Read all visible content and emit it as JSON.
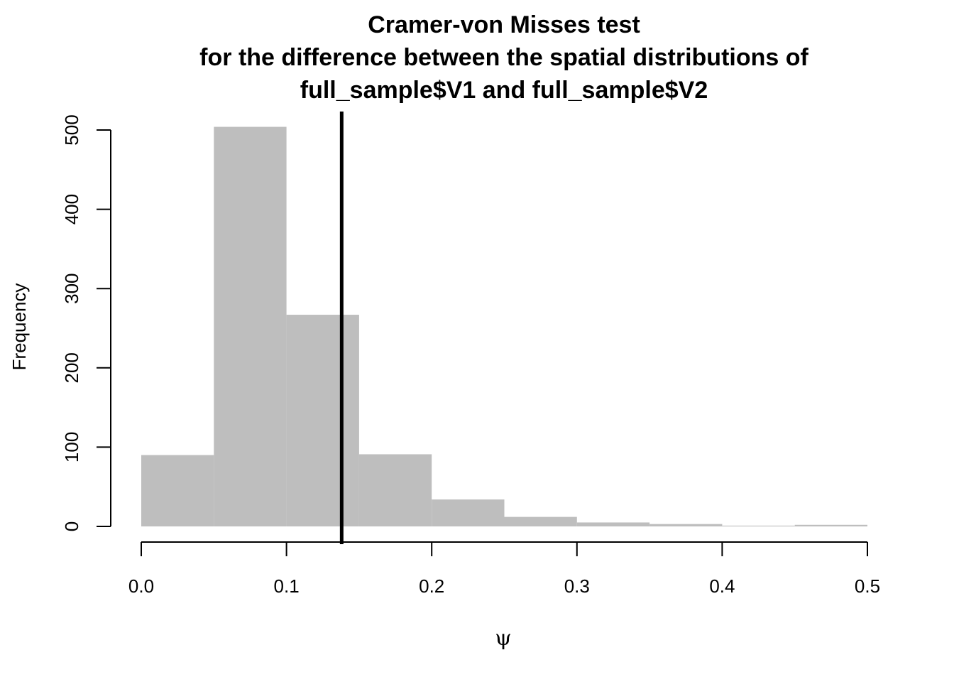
{
  "chart_data": {
    "type": "bar",
    "title_lines": [
      "Cramer-von Misses test",
      "for the difference between the spatial distributions of",
      "full_sample$V1 and full_sample$V2"
    ],
    "xlabel": "ψ",
    "ylabel": "Frequency",
    "bins": [
      {
        "x0": 0.0,
        "x1": 0.05,
        "count": 90
      },
      {
        "x0": 0.05,
        "x1": 0.1,
        "count": 504
      },
      {
        "x0": 0.1,
        "x1": 0.15,
        "count": 267
      },
      {
        "x0": 0.15,
        "x1": 0.2,
        "count": 91
      },
      {
        "x0": 0.2,
        "x1": 0.25,
        "count": 34
      },
      {
        "x0": 0.25,
        "x1": 0.3,
        "count": 12
      },
      {
        "x0": 0.3,
        "x1": 0.35,
        "count": 5
      },
      {
        "x0": 0.35,
        "x1": 0.4,
        "count": 3
      },
      {
        "x0": 0.4,
        "x1": 0.45,
        "count": 1
      },
      {
        "x0": 0.45,
        "x1": 0.5,
        "count": 2
      }
    ],
    "observed_value": 0.138,
    "xlim": [
      0,
      0.5
    ],
    "ylim": [
      0,
      500
    ],
    "x_ticks": [
      "0.0",
      "0.1",
      "0.2",
      "0.3",
      "0.4",
      "0.5"
    ],
    "x_tick_values": [
      0,
      0.1,
      0.2,
      0.3,
      0.4,
      0.5
    ],
    "y_ticks": [
      "0",
      "100",
      "200",
      "300",
      "400",
      "500"
    ],
    "y_tick_values": [
      0,
      100,
      200,
      300,
      400,
      500
    ],
    "bar_color": "#bebebe",
    "line_color": "#000000",
    "grid": false
  }
}
